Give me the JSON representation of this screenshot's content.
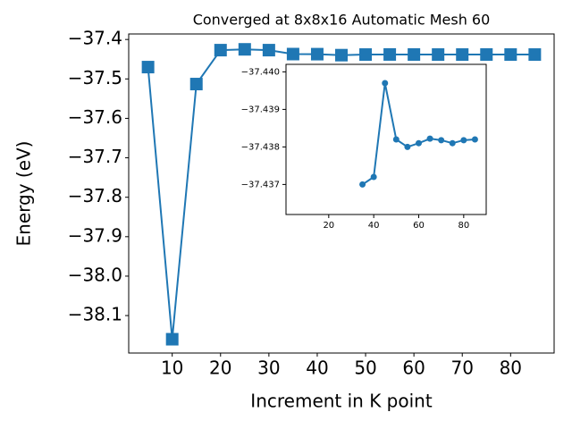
{
  "chart_data": [
    {
      "type": "line",
      "title": "Converged at 8x8x16 Automatic Mesh 60",
      "xlabel": "Increment in K point",
      "ylabel": "Energy (eV)",
      "x": [
        5,
        10,
        15,
        20,
        25,
        30,
        35,
        40,
        45,
        50,
        55,
        60,
        65,
        70,
        75,
        80,
        85
      ],
      "values": [
        -37.47,
        -38.16,
        -37.513,
        -37.427,
        -37.425,
        -37.427,
        -37.437,
        -37.4372,
        -37.4397,
        -37.4382,
        -37.438,
        -37.4381,
        -37.4382,
        -37.4382,
        -37.4381,
        -37.4382,
        -37.4382
      ],
      "color": "#1f77b4",
      "marker": "square",
      "xlim": [
        1,
        89
      ],
      "ylim": [
        -38.195,
        -37.386
      ],
      "xticks": [
        10,
        20,
        30,
        40,
        50,
        60,
        70,
        80
      ],
      "yticks": [
        {
          "value": -38.1,
          "label": "−38.1"
        },
        {
          "value": -38.0,
          "label": "−38.0"
        },
        {
          "value": -37.9,
          "label": "−37.9"
        },
        {
          "value": -37.8,
          "label": "−37.8"
        },
        {
          "value": -37.7,
          "label": "−37.7"
        },
        {
          "value": -37.6,
          "label": "−37.6"
        },
        {
          "value": -37.5,
          "label": "−37.5"
        },
        {
          "value": -37.4,
          "label": "−37.4"
        }
      ]
    },
    {
      "type": "line",
      "x": [
        35,
        40,
        45,
        50,
        55,
        60,
        65,
        70,
        75,
        80,
        85
      ],
      "values": [
        -37.437,
        -37.4372,
        -37.4397,
        -37.4382,
        -37.438,
        -37.4381,
        -37.43822,
        -37.43818,
        -37.4381,
        -37.43818,
        -37.4382
      ],
      "color": "#1f77b4",
      "marker": "circle",
      "xlim": [
        1,
        90
      ],
      "ylim": [
        -37.4362,
        -37.4402
      ],
      "xticks": [
        20,
        40,
        60,
        80
      ],
      "yticks": [
        {
          "value": -37.437,
          "label": "−37.437"
        },
        {
          "value": -37.438,
          "label": "−37.438"
        },
        {
          "value": -37.439,
          "label": "−37.439"
        },
        {
          "value": -37.44,
          "label": "−37.440"
        }
      ]
    }
  ]
}
